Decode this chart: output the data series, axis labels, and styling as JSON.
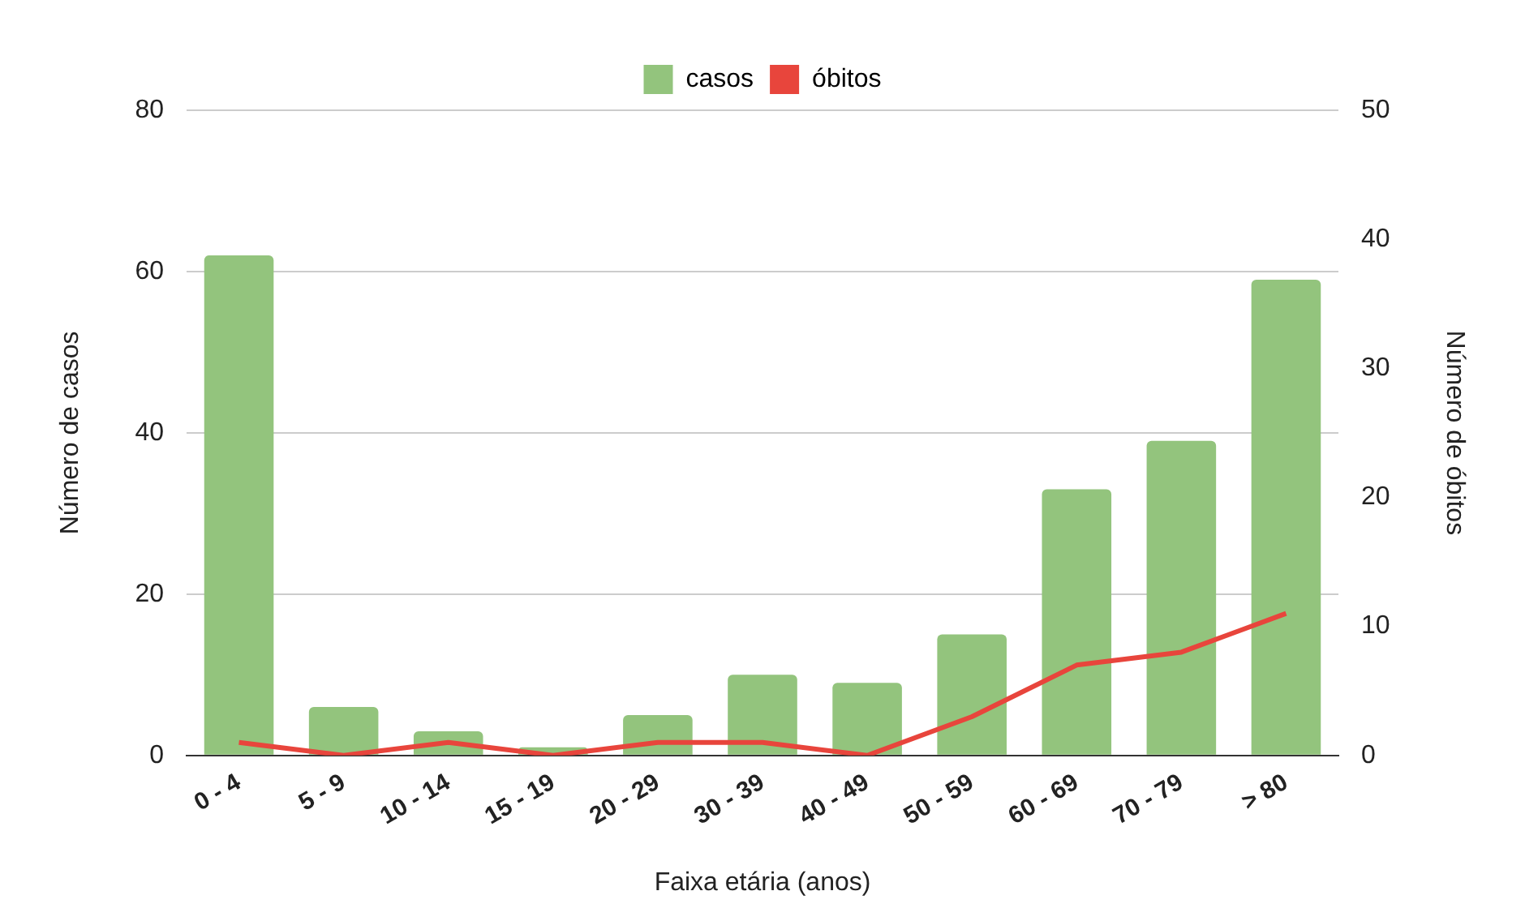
{
  "chart_data": {
    "type": "bar",
    "xlabel": "Faixa etária (anos)",
    "ylabel": "Número de casos",
    "y2label": "Número de óbitos",
    "categories": [
      "0 - 4",
      "5 - 9",
      "10 - 14",
      "15 - 19",
      "20 - 29",
      "30 - 39",
      "40 - 49",
      "50 - 59",
      "60 - 69",
      "70 - 79",
      "> 80"
    ],
    "series": [
      {
        "name": "casos",
        "color": "#93c47d",
        "values": [
          62,
          6,
          3,
          1,
          5,
          10,
          9,
          15,
          33,
          39,
          59
        ]
      },
      {
        "name": "óbitos",
        "type": "line",
        "axis": "y2",
        "color": "#e8453c",
        "values": [
          1,
          0,
          1,
          0,
          1,
          1,
          0,
          3,
          7,
          8,
          11
        ]
      }
    ],
    "ylim": [
      0,
      80
    ],
    "yticks": [
      0,
      20,
      40,
      60,
      80
    ],
    "y2lim": [
      0,
      50
    ],
    "y2ticks": [
      0,
      10,
      20,
      30,
      40,
      50
    ],
    "grid": "y",
    "legend": "top",
    "marker": "none"
  }
}
